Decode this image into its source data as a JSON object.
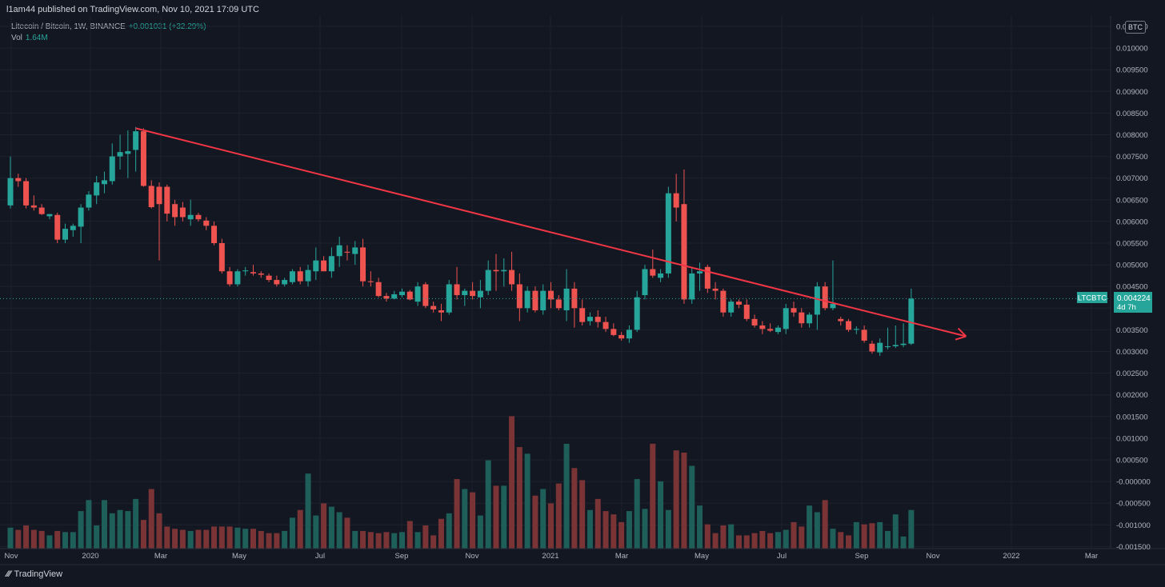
{
  "header": {
    "publish_line": "l1am44 published on TradingView.com, Nov 10, 2021 17:09 UTC"
  },
  "legend": {
    "symbol": "Litecoin / Bitcoin, 1W, BINANCE",
    "change": "+0.001031 (+32.29%)",
    "vol_label": "Vol",
    "vol_value": "1.64M"
  },
  "currency_button": "BTC",
  "price_tag": {
    "symbol": "LTCBTC",
    "price": "0.004224",
    "countdown": "4d 7h"
  },
  "footer": {
    "brand": "TradingView"
  },
  "chart_data": {
    "type": "candlestick",
    "interval": "1W",
    "exchange": "BINANCE",
    "colors": {
      "up": "#26a69a",
      "down": "#ef5350",
      "up_volume": "#1f5f5a",
      "down_volume": "#7b3436",
      "trendline": "#f23645"
    },
    "y_axis": {
      "labels": [
        "0.010500",
        "0.010000",
        "0.009500",
        "0.009000",
        "0.008500",
        "0.008000",
        "0.007500",
        "0.007000",
        "0.006500",
        "0.006000",
        "0.005500",
        "0.005000",
        "0.004500",
        "0.004000",
        "0.003500",
        "0.003000",
        "0.002500",
        "0.002000",
        "0.001500",
        "0.001000",
        "0.000500",
        "-0.000000",
        "-0.000500",
        "-0.001000",
        "-0.001500"
      ],
      "range": [
        -0.0015,
        0.0105
      ]
    },
    "x_axis": {
      "ticks": [
        "Nov",
        "2020",
        "Mar",
        "May",
        "Jul",
        "Sep",
        "Nov",
        "2021",
        "Mar",
        "May",
        "Jul",
        "Sep",
        "Nov",
        "2022",
        "Mar"
      ]
    },
    "candles": [
      {
        "o": 0.00637,
        "h": 0.0075,
        "l": 0.0063,
        "c": 0.007
      },
      {
        "o": 0.007,
        "h": 0.0071,
        "l": 0.0068,
        "c": 0.00693
      },
      {
        "o": 0.00693,
        "h": 0.007,
        "l": 0.0063,
        "c": 0.00637
      },
      {
        "o": 0.00637,
        "h": 0.0066,
        "l": 0.00625,
        "c": 0.00632
      },
      {
        "o": 0.00632,
        "h": 0.0064,
        "l": 0.00615,
        "c": 0.00617
      },
      {
        "o": 0.00612,
        "h": 0.00617,
        "l": 0.00605,
        "c": 0.00617
      },
      {
        "o": 0.00615,
        "h": 0.0062,
        "l": 0.0055,
        "c": 0.00558
      },
      {
        "o": 0.00558,
        "h": 0.00595,
        "l": 0.0055,
        "c": 0.00583
      },
      {
        "o": 0.0058,
        "h": 0.00595,
        "l": 0.00565,
        "c": 0.0059
      },
      {
        "o": 0.00588,
        "h": 0.0064,
        "l": 0.0055,
        "c": 0.00632
      },
      {
        "o": 0.00632,
        "h": 0.0067,
        "l": 0.00625,
        "c": 0.00662
      },
      {
        "o": 0.0066,
        "h": 0.00705,
        "l": 0.0064,
        "c": 0.0069
      },
      {
        "o": 0.00686,
        "h": 0.00715,
        "l": 0.00665,
        "c": 0.00695
      },
      {
        "o": 0.00693,
        "h": 0.0078,
        "l": 0.00685,
        "c": 0.0075
      },
      {
        "o": 0.0075,
        "h": 0.008,
        "l": 0.0072,
        "c": 0.0076
      },
      {
        "o": 0.00756,
        "h": 0.0081,
        "l": 0.007,
        "c": 0.00762
      },
      {
        "o": 0.00765,
        "h": 0.00818,
        "l": 0.00715,
        "c": 0.00808
      },
      {
        "o": 0.00808,
        "h": 0.00815,
        "l": 0.0068,
        "c": 0.00682
      },
      {
        "o": 0.00682,
        "h": 0.00695,
        "l": 0.0063,
        "c": 0.00633
      },
      {
        "o": 0.0068,
        "h": 0.0069,
        "l": 0.0051,
        "c": 0.0064
      },
      {
        "o": 0.0068,
        "h": 0.00685,
        "l": 0.006,
        "c": 0.00618
      },
      {
        "o": 0.0064,
        "h": 0.0065,
        "l": 0.0059,
        "c": 0.0061
      },
      {
        "o": 0.00632,
        "h": 0.00645,
        "l": 0.006,
        "c": 0.0061
      },
      {
        "o": 0.00605,
        "h": 0.0065,
        "l": 0.0059,
        "c": 0.00615
      },
      {
        "o": 0.00615,
        "h": 0.0062,
        "l": 0.006,
        "c": 0.00605
      },
      {
        "o": 0.00602,
        "h": 0.0061,
        "l": 0.0058,
        "c": 0.0059
      },
      {
        "o": 0.0059,
        "h": 0.006,
        "l": 0.00545,
        "c": 0.0055
      },
      {
        "o": 0.0055,
        "h": 0.0056,
        "l": 0.0048,
        "c": 0.00485
      },
      {
        "o": 0.00485,
        "h": 0.00495,
        "l": 0.0045,
        "c": 0.00455
      },
      {
        "o": 0.00455,
        "h": 0.0049,
        "l": 0.0045,
        "c": 0.00485
      },
      {
        "o": 0.00485,
        "h": 0.00495,
        "l": 0.00475,
        "c": 0.00487
      },
      {
        "o": 0.00483,
        "h": 0.005,
        "l": 0.00475,
        "c": 0.0048
      },
      {
        "o": 0.0048,
        "h": 0.00485,
        "l": 0.0047,
        "c": 0.00477
      },
      {
        "o": 0.00475,
        "h": 0.0048,
        "l": 0.0046,
        "c": 0.00465
      },
      {
        "o": 0.00465,
        "h": 0.00475,
        "l": 0.0045,
        "c": 0.00455
      },
      {
        "o": 0.00455,
        "h": 0.0047,
        "l": 0.0045,
        "c": 0.00465
      },
      {
        "o": 0.0046,
        "h": 0.0049,
        "l": 0.00455,
        "c": 0.00485
      },
      {
        "o": 0.00485,
        "h": 0.00495,
        "l": 0.00455,
        "c": 0.00462
      },
      {
        "o": 0.00462,
        "h": 0.005,
        "l": 0.0045,
        "c": 0.00488
      },
      {
        "o": 0.00485,
        "h": 0.0054,
        "l": 0.00465,
        "c": 0.0051
      },
      {
        "o": 0.0051,
        "h": 0.0052,
        "l": 0.0049,
        "c": 0.00485
      },
      {
        "o": 0.00485,
        "h": 0.0054,
        "l": 0.0047,
        "c": 0.0052
      },
      {
        "o": 0.0052,
        "h": 0.00565,
        "l": 0.00495,
        "c": 0.00545
      },
      {
        "o": 0.0053,
        "h": 0.00545,
        "l": 0.0051,
        "c": 0.00528
      },
      {
        "o": 0.00525,
        "h": 0.00555,
        "l": 0.005,
        "c": 0.0054
      },
      {
        "o": 0.0054,
        "h": 0.0056,
        "l": 0.0045,
        "c": 0.00462
      },
      {
        "o": 0.00462,
        "h": 0.00485,
        "l": 0.0045,
        "c": 0.0046
      },
      {
        "o": 0.0046,
        "h": 0.0047,
        "l": 0.00425,
        "c": 0.00428
      },
      {
        "o": 0.00428,
        "h": 0.00435,
        "l": 0.00415,
        "c": 0.00422
      },
      {
        "o": 0.00422,
        "h": 0.0044,
        "l": 0.0042,
        "c": 0.00432
      },
      {
        "o": 0.0043,
        "h": 0.00445,
        "l": 0.00425,
        "c": 0.00438
      },
      {
        "o": 0.00438,
        "h": 0.00442,
        "l": 0.00418,
        "c": 0.0042
      },
      {
        "o": 0.00415,
        "h": 0.0046,
        "l": 0.00405,
        "c": 0.0045
      },
      {
        "o": 0.00455,
        "h": 0.0046,
        "l": 0.004,
        "c": 0.00405
      },
      {
        "o": 0.00405,
        "h": 0.00415,
        "l": 0.0039,
        "c": 0.00397
      },
      {
        "o": 0.00395,
        "h": 0.0041,
        "l": 0.0037,
        "c": 0.0039
      },
      {
        "o": 0.0039,
        "h": 0.00465,
        "l": 0.00385,
        "c": 0.00455
      },
      {
        "o": 0.00455,
        "h": 0.00495,
        "l": 0.0042,
        "c": 0.0043
      },
      {
        "o": 0.0043,
        "h": 0.00445,
        "l": 0.00405,
        "c": 0.0044
      },
      {
        "o": 0.0044,
        "h": 0.0046,
        "l": 0.0042,
        "c": 0.00428
      },
      {
        "o": 0.00425,
        "h": 0.00465,
        "l": 0.004,
        "c": 0.0044
      },
      {
        "o": 0.0044,
        "h": 0.0051,
        "l": 0.0043,
        "c": 0.00488
      },
      {
        "o": 0.00488,
        "h": 0.00525,
        "l": 0.0044,
        "c": 0.00485
      },
      {
        "o": 0.00485,
        "h": 0.00515,
        "l": 0.0045,
        "c": 0.00488
      },
      {
        "o": 0.00488,
        "h": 0.0053,
        "l": 0.0044,
        "c": 0.00455
      },
      {
        "o": 0.00455,
        "h": 0.0048,
        "l": 0.0037,
        "c": 0.004
      },
      {
        "o": 0.004,
        "h": 0.0045,
        "l": 0.0039,
        "c": 0.0044
      },
      {
        "o": 0.0044,
        "h": 0.0045,
        "l": 0.0039,
        "c": 0.00395
      },
      {
        "o": 0.00395,
        "h": 0.00455,
        "l": 0.00385,
        "c": 0.0044
      },
      {
        "o": 0.0044,
        "h": 0.0046,
        "l": 0.004,
        "c": 0.0042
      },
      {
        "o": 0.0042,
        "h": 0.0043,
        "l": 0.00395,
        "c": 0.004
      },
      {
        "o": 0.00395,
        "h": 0.0049,
        "l": 0.0037,
        "c": 0.00445
      },
      {
        "o": 0.00445,
        "h": 0.0046,
        "l": 0.00355,
        "c": 0.004
      },
      {
        "o": 0.004,
        "h": 0.0042,
        "l": 0.0036,
        "c": 0.00368
      },
      {
        "o": 0.0037,
        "h": 0.0039,
        "l": 0.0036,
        "c": 0.0038
      },
      {
        "o": 0.0038,
        "h": 0.00395,
        "l": 0.00355,
        "c": 0.00368
      },
      {
        "o": 0.00368,
        "h": 0.0038,
        "l": 0.00345,
        "c": 0.00352
      },
      {
        "o": 0.00352,
        "h": 0.00365,
        "l": 0.00335,
        "c": 0.00338
      },
      {
        "o": 0.00338,
        "h": 0.00345,
        "l": 0.00325,
        "c": 0.0033
      },
      {
        "o": 0.0033,
        "h": 0.0036,
        "l": 0.0032,
        "c": 0.0035
      },
      {
        "o": 0.0035,
        "h": 0.0044,
        "l": 0.00345,
        "c": 0.00425
      },
      {
        "o": 0.0043,
        "h": 0.005,
        "l": 0.0042,
        "c": 0.0049
      },
      {
        "o": 0.0049,
        "h": 0.00535,
        "l": 0.0047,
        "c": 0.00475
      },
      {
        "o": 0.0047,
        "h": 0.0049,
        "l": 0.0046,
        "c": 0.0048
      },
      {
        "o": 0.0048,
        "h": 0.0068,
        "l": 0.0047,
        "c": 0.00665
      },
      {
        "o": 0.00665,
        "h": 0.0071,
        "l": 0.006,
        "c": 0.00632
      },
      {
        "o": 0.0064,
        "h": 0.0072,
        "l": 0.0041,
        "c": 0.0042
      },
      {
        "o": 0.0042,
        "h": 0.00495,
        "l": 0.0041,
        "c": 0.0048
      },
      {
        "o": 0.0048,
        "h": 0.00505,
        "l": 0.0044,
        "c": 0.00485
      },
      {
        "o": 0.00495,
        "h": 0.005,
        "l": 0.00435,
        "c": 0.00445
      },
      {
        "o": 0.00445,
        "h": 0.0046,
        "l": 0.0042,
        "c": 0.0044
      },
      {
        "o": 0.0044,
        "h": 0.00445,
        "l": 0.0038,
        "c": 0.0039
      },
      {
        "o": 0.0039,
        "h": 0.0042,
        "l": 0.0038,
        "c": 0.00415
      },
      {
        "o": 0.00415,
        "h": 0.0042,
        "l": 0.004,
        "c": 0.00408
      },
      {
        "o": 0.00408,
        "h": 0.0042,
        "l": 0.0037,
        "c": 0.00375
      },
      {
        "o": 0.00375,
        "h": 0.00385,
        "l": 0.00355,
        "c": 0.0036
      },
      {
        "o": 0.0036,
        "h": 0.0037,
        "l": 0.0034,
        "c": 0.00352
      },
      {
        "o": 0.00352,
        "h": 0.00365,
        "l": 0.00345,
        "c": 0.00348
      },
      {
        "o": 0.00345,
        "h": 0.0036,
        "l": 0.0034,
        "c": 0.00355
      },
      {
        "o": 0.00352,
        "h": 0.0041,
        "l": 0.0034,
        "c": 0.004
      },
      {
        "o": 0.004,
        "h": 0.00415,
        "l": 0.0038,
        "c": 0.0039
      },
      {
        "o": 0.0039,
        "h": 0.004,
        "l": 0.00355,
        "c": 0.00365
      },
      {
        "o": 0.00365,
        "h": 0.0039,
        "l": 0.00355,
        "c": 0.00385
      },
      {
        "o": 0.00385,
        "h": 0.0046,
        "l": 0.0035,
        "c": 0.0045
      },
      {
        "o": 0.0045,
        "h": 0.0046,
        "l": 0.00395,
        "c": 0.004
      },
      {
        "o": 0.004,
        "h": 0.0051,
        "l": 0.00395,
        "c": 0.0041
      },
      {
        "o": 0.00375,
        "h": 0.0038,
        "l": 0.0036,
        "c": 0.0037
      },
      {
        "o": 0.0037,
        "h": 0.00375,
        "l": 0.00345,
        "c": 0.0035
      },
      {
        "o": 0.0035,
        "h": 0.00358,
        "l": 0.0034,
        "c": 0.00352
      },
      {
        "o": 0.0035,
        "h": 0.0036,
        "l": 0.0032,
        "c": 0.00325
      },
      {
        "o": 0.00318,
        "h": 0.00325,
        "l": 0.00295,
        "c": 0.003
      },
      {
        "o": 0.00298,
        "h": 0.0033,
        "l": 0.0029,
        "c": 0.0032
      },
      {
        "o": 0.0031,
        "h": 0.00355,
        "l": 0.00305,
        "c": 0.00312
      },
      {
        "o": 0.00312,
        "h": 0.0036,
        "l": 0.00308,
        "c": 0.00315
      },
      {
        "o": 0.00315,
        "h": 0.00365,
        "l": 0.0031,
        "c": 0.00318
      },
      {
        "o": 0.00318,
        "h": 0.00445,
        "l": 0.00315,
        "c": 0.00422
      }
    ],
    "volumes": [
      0.19,
      0.17,
      0.21,
      0.17,
      0.16,
      0.12,
      0.16,
      0.15,
      0.15,
      0.34,
      0.44,
      0.21,
      0.44,
      0.32,
      0.35,
      0.34,
      0.45,
      0.26,
      0.54,
      0.32,
      0.2,
      0.18,
      0.17,
      0.16,
      0.17,
      0.17,
      0.2,
      0.2,
      0.2,
      0.19,
      0.18,
      0.18,
      0.16,
      0.14,
      0.14,
      0.16,
      0.28,
      0.35,
      0.68,
      0.3,
      0.41,
      0.38,
      0.33,
      0.28,
      0.16,
      0.16,
      0.15,
      0.14,
      0.15,
      0.14,
      0.15,
      0.25,
      0.15,
      0.21,
      0.12,
      0.27,
      0.32,
      0.63,
      0.54,
      0.51,
      0.3,
      0.8,
      0.57,
      0.57,
      1.2,
      0.92,
      0.86,
      0.48,
      0.54,
      0.41,
      0.59,
      0.95,
      0.73,
      0.62,
      0.35,
      0.45,
      0.34,
      0.31,
      0.24,
      0.34,
      0.63,
      0.36,
      0.95,
      0.61,
      0.35,
      0.89,
      0.87,
      0.75,
      0.39,
      0.22,
      0.14,
      0.21,
      0.22,
      0.12,
      0.12,
      0.14,
      0.16,
      0.14,
      0.15,
      0.17,
      0.24,
      0.2,
      0.39,
      0.33,
      0.44,
      0.18,
      0.15,
      0.12,
      0.24,
      0.22,
      0.23,
      0.24,
      0.16,
      0.31,
      0.11,
      0.35
    ],
    "trendline": {
      "color": "#f23645",
      "start": {
        "bar": 16,
        "price": 0.00815
      },
      "end": {
        "bar": 122,
        "price": 0.00335
      },
      "arrow": true
    }
  }
}
